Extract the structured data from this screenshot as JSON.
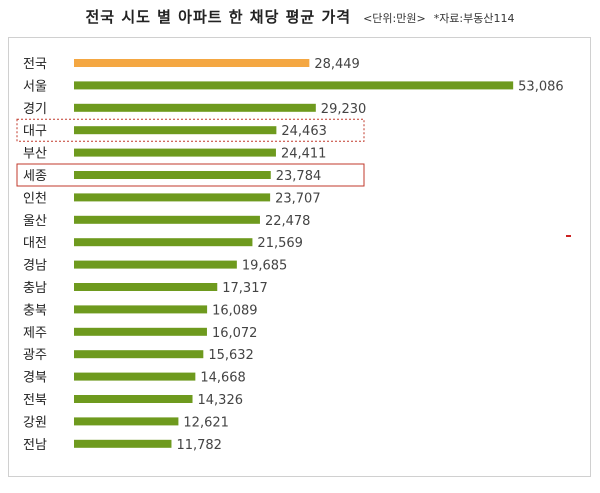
{
  "header": {
    "title": "전국 시도 별 아파트 한 채당 평균 가격",
    "unit_note": "<단위:만원>",
    "source_note": "*자료:부동산114"
  },
  "chart_data": {
    "type": "bar",
    "orientation": "horizontal",
    "title": "전국 시도 별 아파트 한 채당 평균 가격",
    "xlabel": "",
    "ylabel": "",
    "categories": [
      "전국",
      "서울",
      "경기",
      "대구",
      "부산",
      "세종",
      "인천",
      "울산",
      "대전",
      "경남",
      "충남",
      "충북",
      "제주",
      "광주",
      "경북",
      "전북",
      "강원",
      "전남"
    ],
    "values": [
      28449,
      53086,
      29230,
      24463,
      24411,
      23784,
      23707,
      22478,
      21569,
      19685,
      17317,
      16089,
      16072,
      15632,
      14668,
      14326,
      12621,
      11782
    ],
    "value_labels": [
      "28,449",
      "53,086",
      "29,230",
      "24,463",
      "24,411",
      "23,784",
      "23,707",
      "22,478",
      "21,569",
      "19,685",
      "17,317",
      "16,089",
      "16,072",
      "15,632",
      "14,668",
      "14,326",
      "12,621",
      "11,782"
    ],
    "xlim": [
      0,
      55000
    ],
    "grid": false,
    "legend": "none",
    "colors": {
      "highlight": "#f4a742",
      "default": "#6e9a1e",
      "box": "#c0392b"
    },
    "highlighted_bars": [
      "전국"
    ],
    "boxed_categories": [
      {
        "category": "대구",
        "style": "dashed"
      },
      {
        "category": "세종",
        "style": "solid"
      }
    ]
  }
}
